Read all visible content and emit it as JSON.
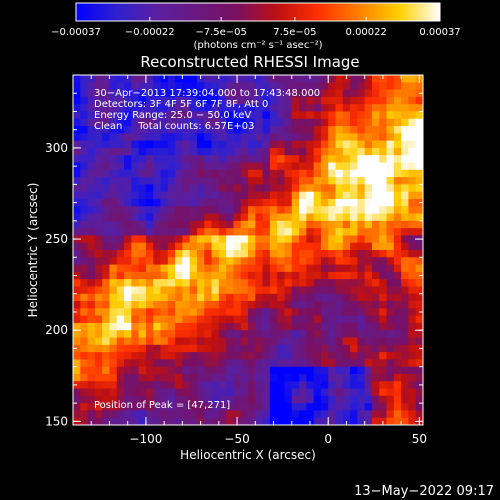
{
  "chart_data": {
    "type": "heatmap",
    "title": "Reconstructed RHESSI Image",
    "xlabel": "Heliocentric X (arcsec)",
    "ylabel": "Heliocentric Y (arcsec)",
    "xlim": [
      -140,
      52
    ],
    "ylim": [
      148,
      340
    ],
    "x_ticks": [
      -100,
      -50,
      0,
      50
    ],
    "x_tick_labels": [
      "−100",
      "−50",
      "0",
      "50"
    ],
    "y_ticks": [
      150,
      200,
      250,
      300
    ],
    "y_tick_labels": [
      "150",
      "200",
      "250",
      "300"
    ],
    "colorbar": {
      "range": [
        -0.00037,
        0.00037
      ],
      "ticks": [
        -0.00037,
        -0.00022,
        -7.5e-05,
        7.5e-05,
        0.00022,
        0.00037
      ],
      "tick_labels": [
        "−0.00037",
        "−0.00022",
        "−7.5e−05",
        "7.5e−05",
        "0.00022",
        "0.00037"
      ],
      "unit_label": "(photons cm⁻² s⁻¹ asec⁻²)",
      "colors": [
        "#0000ff",
        "#3020d0",
        "#5a1fa0",
        "#6a1880",
        "#7a1060",
        "#c01010",
        "#ff3000",
        "#ff8000",
        "#ffd000",
        "#ffffff"
      ]
    },
    "annotations": [
      "30−Apr−2013 17:39:04.000 to 17:43:48.000",
      "Detectors: 3F 4F 5F 6F 7F 8F, Att 0",
      "Energy Range: 25.0 − 50.0 keV",
      "Clean     Total counts: 6.57E+03"
    ],
    "peak_label": "Position of Peak = [47,271]",
    "peak": [
      47,
      271
    ],
    "grid": false
  },
  "footer": {
    "date": "13−May−2022 09:17"
  }
}
